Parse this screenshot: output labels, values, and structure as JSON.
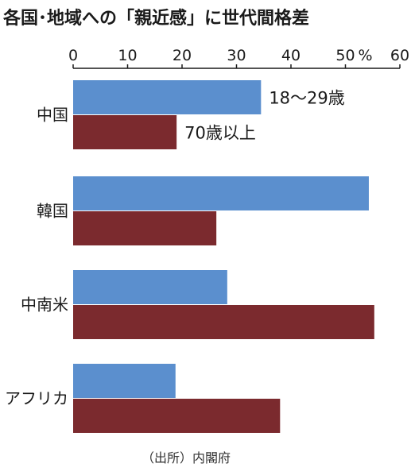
{
  "chart_data": {
    "type": "bar",
    "orientation": "horizontal",
    "title": "各国･地域への「親近感」に世代間格差",
    "categories": [
      "中国",
      "韓国",
      "中南米",
      "アフリカ"
    ],
    "series": [
      {
        "name": "18〜29歳",
        "color": "#5b8fce",
        "values": [
          34.5,
          54.3,
          28.3,
          18.8
        ]
      },
      {
        "name": "70歳以上",
        "color": "#7b2a2e",
        "values": [
          19.0,
          26.3,
          55.3,
          38.0
        ]
      }
    ],
    "x_axis": {
      "position": "top",
      "range": [
        0,
        60
      ],
      "ticks": [
        0,
        10,
        20,
        30,
        40,
        50,
        60
      ],
      "tick_labels": [
        "0",
        "10",
        "20",
        "30",
        "40",
        "50",
        "60"
      ],
      "unit": "%"
    },
    "legend": "inline labels beside the first category's bars",
    "grid": false,
    "source": "（出所）内閣府"
  }
}
